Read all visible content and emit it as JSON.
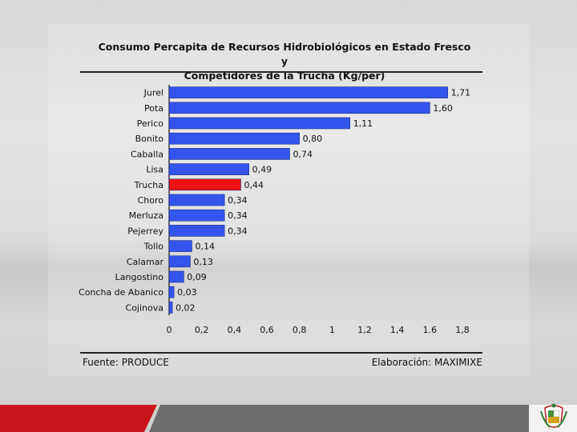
{
  "header": {
    "title_line1": "Consumo Percapita de Recursos Hidrobiológicos en Estado Fresco y",
    "title_line2": "Competidores de la Trucha (Kg/per)"
  },
  "footer": {
    "source": "Fuente: PRODUCE",
    "credit": "Elaboración: MAXIMIXE"
  },
  "chart_data": {
    "type": "bar",
    "orientation": "horizontal",
    "title": "Consumo Percapita de Recursos Hidrobiológicos en Estado Fresco y Competidores de la Trucha (Kg/per)",
    "categories": [
      "Jurel",
      "Pota",
      "Perico",
      "Bonito",
      "Caballa",
      "Lisa",
      "Trucha",
      "Choro",
      "Merluza",
      "Pejerrey",
      "Tollo",
      "Calamar",
      "Langostino",
      "Concha de Abanico",
      "Cojinova"
    ],
    "values": [
      1.71,
      1.6,
      1.11,
      0.8,
      0.74,
      0.49,
      0.44,
      0.34,
      0.34,
      0.34,
      0.14,
      0.13,
      0.09,
      0.03,
      0.02
    ],
    "value_labels": [
      "1,71",
      "1,60",
      "1,11",
      "0,80",
      "0,74",
      "0,49",
      "0,44",
      "0,34",
      "0,34",
      "0,34",
      "0,14",
      "0,13",
      "0,09",
      "0,03",
      "0,02"
    ],
    "highlight": "Trucha",
    "xlim": [
      0,
      1.8
    ],
    "xticks": [
      0,
      0.2,
      0.4,
      0.6,
      0.8,
      1,
      1.2,
      1.4,
      1.6,
      1.8
    ],
    "xtick_labels": [
      "0",
      "0,2",
      "0,4",
      "0,6",
      "0,8",
      "1",
      "1,2",
      "1,4",
      "1.6",
      "1,8"
    ],
    "grid": false,
    "colors": {
      "bar": "#3355ee",
      "highlight": "#ee1111",
      "axis": "#111111"
    }
  },
  "colors": {
    "band_red": "#c8151b",
    "band_dark": "#6d6d6d"
  }
}
